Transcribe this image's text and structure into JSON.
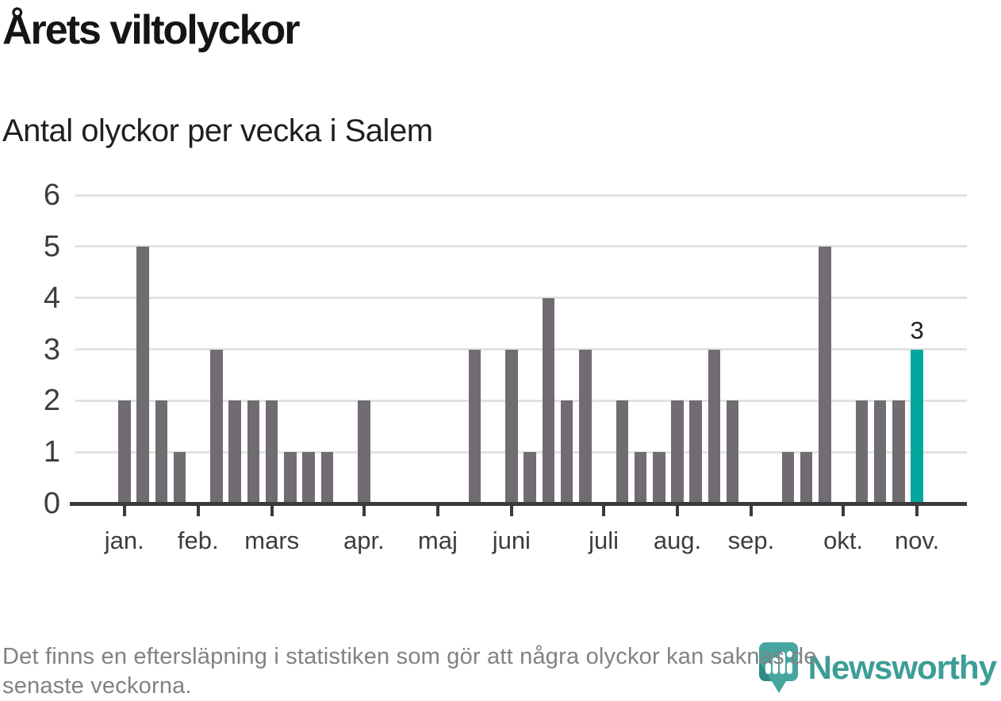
{
  "title": "Årets viltolyckor",
  "subtitle": "Antal olyckor per vecka i Salem",
  "footer": {
    "line1": "Det finns en eftersläpning i statistiken som gör att några olyckor kan saknas de",
    "line2": "senaste veckorna."
  },
  "logo": {
    "wordmark": "Newsworthy"
  },
  "colors": {
    "bar": "#706c72",
    "highlight": "#00a79d",
    "gridline": "#e2e2e2",
    "axis": "#3b3b3b",
    "tick_text": "#3d3d3d",
    "annotation_text": "#1f1f1f",
    "footer_text": "#828282",
    "logo_teal": "#3e9d97",
    "logo_pin": "#46a59f",
    "logo_pin_dark": "#2e8c86"
  },
  "chart_data": {
    "type": "bar",
    "title": "Årets viltolyckor",
    "subtitle": "Antal olyckor per vecka i Salem",
    "xlabel": "",
    "ylabel": "",
    "x_unit": "vecka",
    "ylim": [
      0,
      6
    ],
    "yticks": [
      0,
      1,
      2,
      3,
      4,
      5,
      6
    ],
    "grid": true,
    "legend_position": "none",
    "weeks": [
      1,
      2,
      3,
      4,
      5,
      6,
      7,
      8,
      9,
      10,
      11,
      12,
      13,
      14,
      15,
      16,
      17,
      18,
      19,
      20,
      21,
      22,
      23,
      24,
      25,
      26,
      27,
      28,
      29,
      30,
      31,
      32,
      33,
      34,
      35,
      36,
      37,
      38,
      39,
      40,
      41,
      42,
      43,
      44
    ],
    "values": [
      2,
      5,
      2,
      1,
      0,
      3,
      2,
      2,
      2,
      1,
      1,
      1,
      0,
      2,
      0,
      0,
      0,
      0,
      0,
      3,
      0,
      3,
      1,
      4,
      2,
      3,
      0,
      2,
      1,
      1,
      2,
      2,
      3,
      2,
      0,
      0,
      1,
      1,
      5,
      0,
      2,
      2,
      2,
      3
    ],
    "highlight_index": 43,
    "highlight_value_label": "3",
    "month_ticks": [
      {
        "label": "jan.",
        "week_index": 0
      },
      {
        "label": "feb.",
        "week_index": 4
      },
      {
        "label": "mars",
        "week_index": 8
      },
      {
        "label": "apr.",
        "week_index": 13
      },
      {
        "label": "maj",
        "week_index": 17
      },
      {
        "label": "juni",
        "week_index": 21
      },
      {
        "label": "juli",
        "week_index": 26
      },
      {
        "label": "aug.",
        "week_index": 30
      },
      {
        "label": "sep.",
        "week_index": 34
      },
      {
        "label": "okt.",
        "week_index": 39
      },
      {
        "label": "nov.",
        "week_index": 43
      }
    ]
  }
}
